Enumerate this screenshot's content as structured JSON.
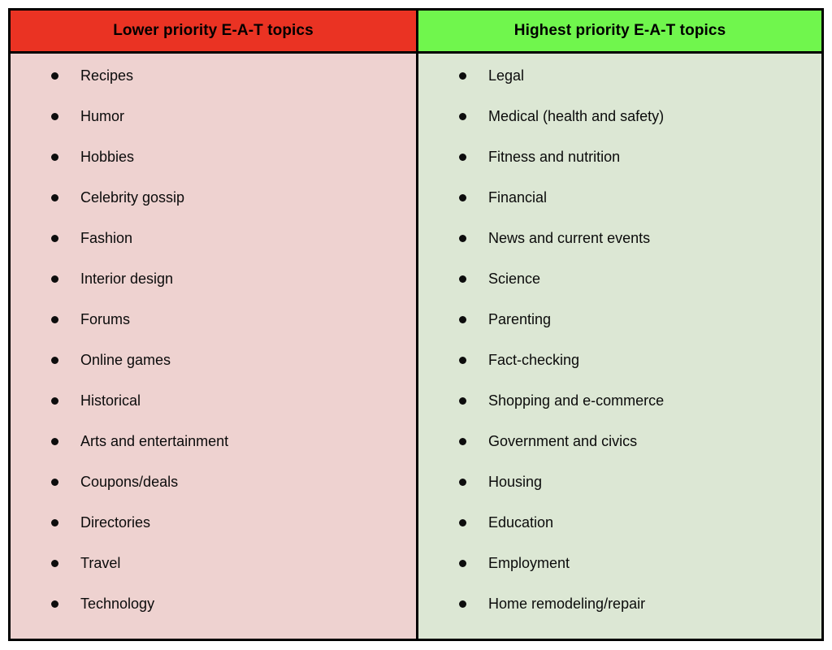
{
  "table": {
    "name": "E-A-T topic priority comparison table",
    "border_color": "#000000",
    "text_color": "#000000",
    "columns": [
      {
        "header": "Lower priority E-A-T topics",
        "header_bg": "#EA3323",
        "body_bg": "#EED2D0",
        "items": [
          "Recipes",
          "Humor",
          "Hobbies",
          "Celebrity gossip",
          "Fashion",
          "Interior design",
          "Forums",
          "Online games",
          "Historical",
          "Arts and entertainment",
          "Coupons/deals",
          "Directories",
          "Travel",
          "Technology"
        ]
      },
      {
        "header": "Highest priority E-A-T topics",
        "header_bg": "#70F64D",
        "body_bg": "#DCE7D4",
        "items": [
          "Legal",
          "Medical (health and safety)",
          "Fitness and nutrition",
          "Financial",
          "News and current events",
          "Science",
          "Parenting",
          "Fact-checking",
          "Shopping and e-commerce",
          "Government and civics",
          "Housing",
          "Education",
          "Employment",
          "Home remodeling/repair"
        ]
      }
    ]
  }
}
